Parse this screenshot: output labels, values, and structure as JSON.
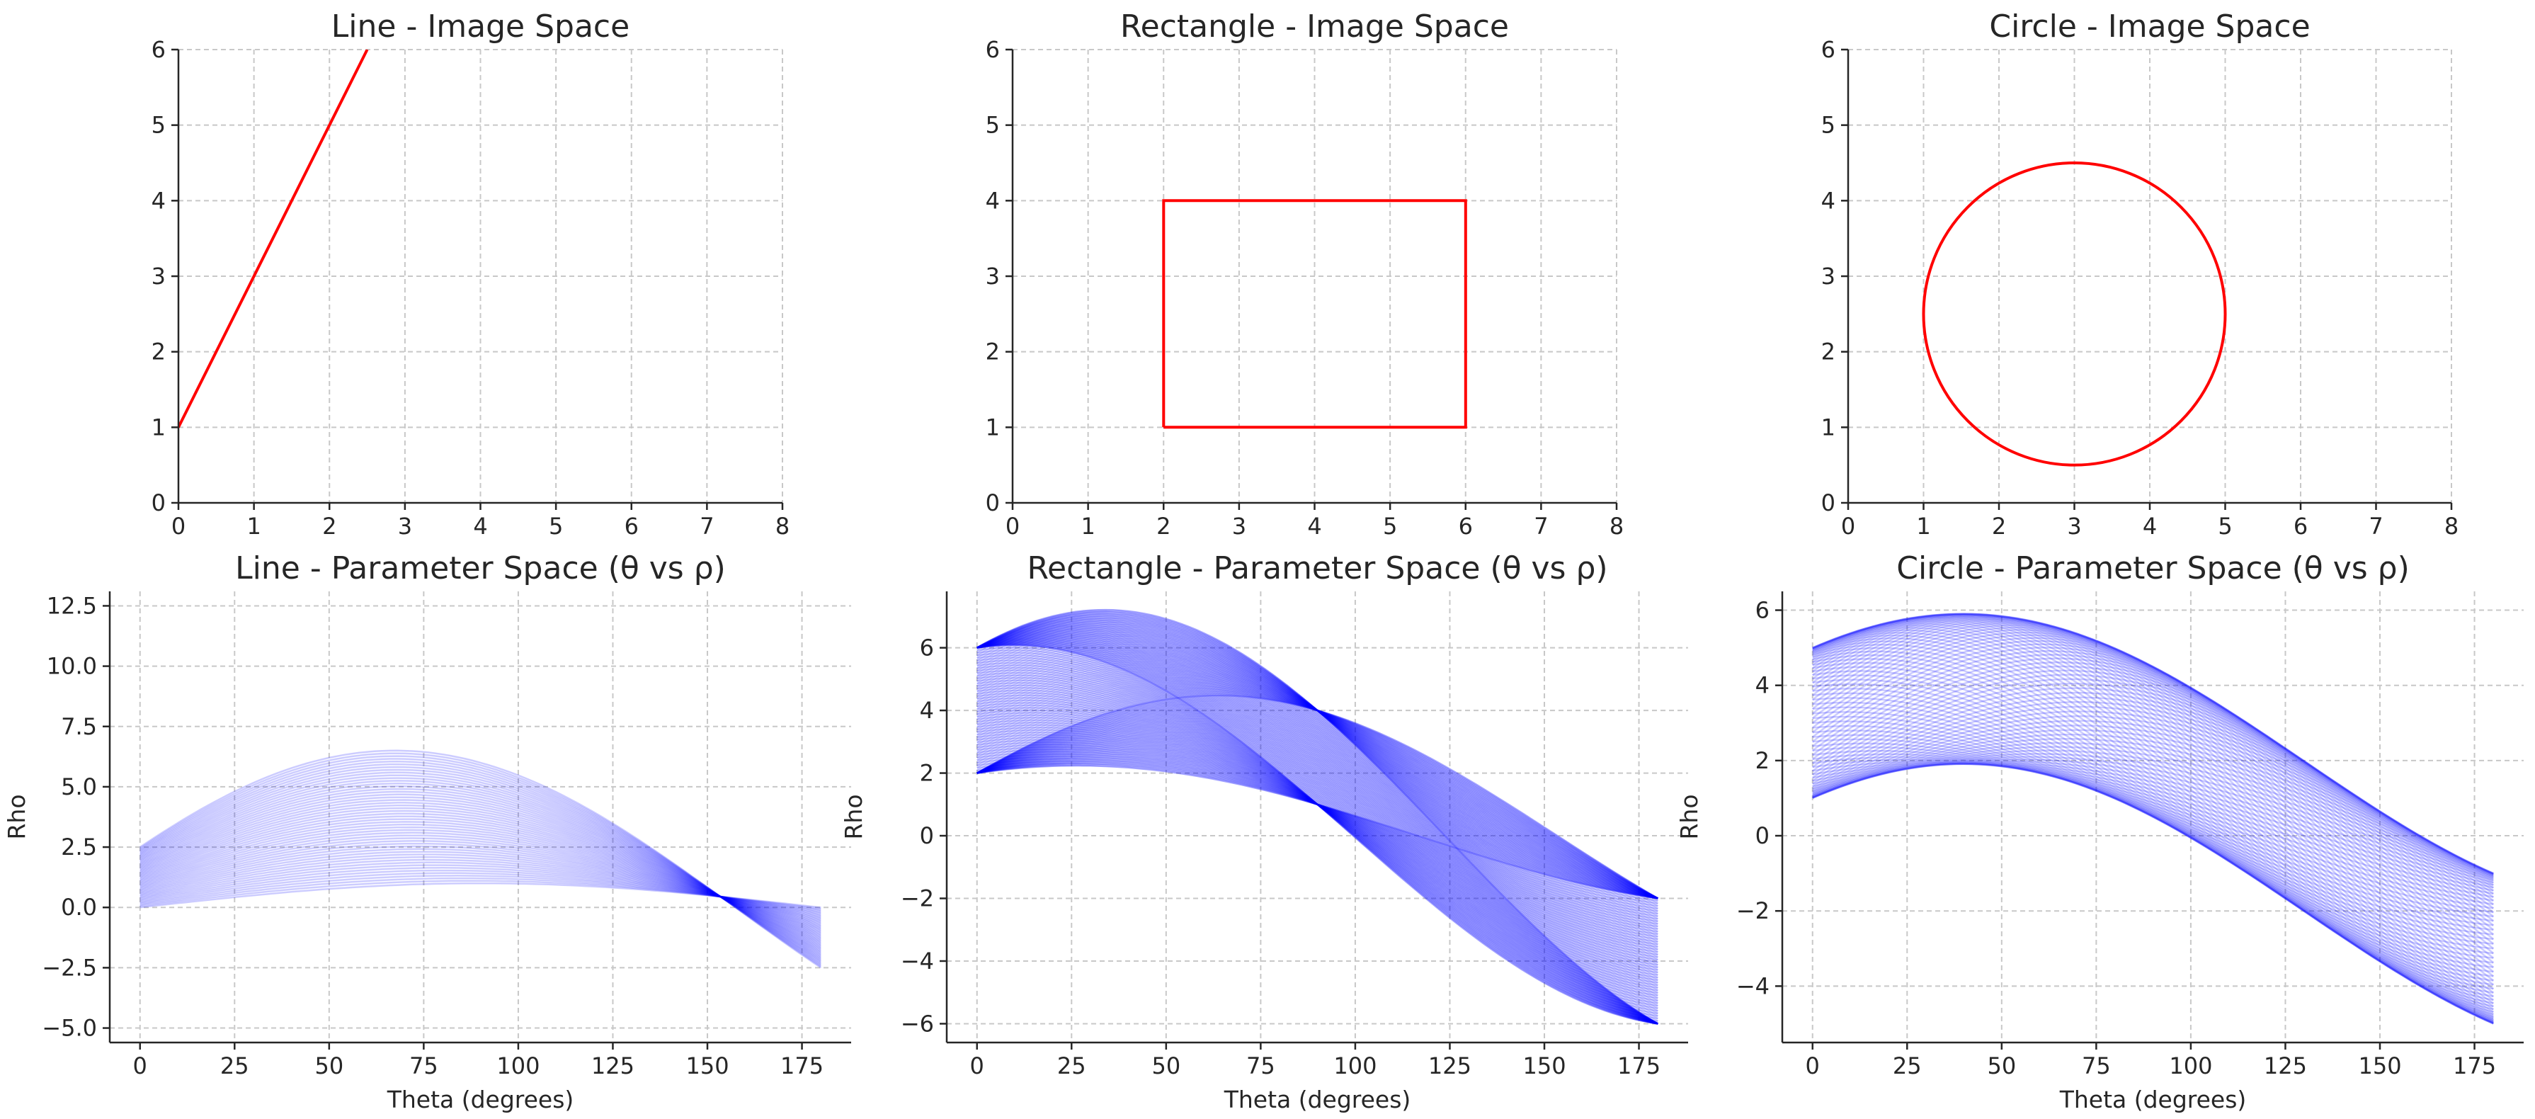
{
  "chart_data": [
    {
      "type": "line",
      "title": "Line - Image Space",
      "xlabel": "",
      "ylabel": "",
      "xlim": [
        0,
        8
      ],
      "ylim": [
        0,
        6
      ],
      "xticks": [
        "0",
        "1",
        "2",
        "3",
        "4",
        "5",
        "6",
        "7",
        "8"
      ],
      "yticks": [
        "0",
        "1",
        "2",
        "3",
        "4",
        "5",
        "6"
      ],
      "grid": true,
      "series": [
        {
          "color": "#ff0000",
          "x": [
            0,
            2.5
          ],
          "y": [
            1,
            6
          ]
        }
      ]
    },
    {
      "type": "line",
      "title": "Rectangle - Image Space",
      "xlabel": "",
      "ylabel": "",
      "xlim": [
        0,
        8
      ],
      "ylim": [
        0,
        6
      ],
      "xticks": [
        "0",
        "1",
        "2",
        "3",
        "4",
        "5",
        "6",
        "7",
        "8"
      ],
      "yticks": [
        "0",
        "1",
        "2",
        "3",
        "4",
        "5",
        "6"
      ],
      "grid": true,
      "series": [
        {
          "color": "#ff0000",
          "x": [
            2,
            6,
            6,
            2,
            2
          ],
          "y": [
            1,
            1,
            4,
            4,
            1
          ]
        }
      ]
    },
    {
      "type": "line",
      "title": "Circle - Image Space",
      "xlabel": "",
      "ylabel": "",
      "xlim": [
        0,
        8
      ],
      "ylim": [
        0,
        6
      ],
      "xticks": [
        "0",
        "1",
        "2",
        "3",
        "4",
        "5",
        "6",
        "7",
        "8"
      ],
      "yticks": [
        "0",
        "1",
        "2",
        "3",
        "4",
        "5",
        "6"
      ],
      "grid": true,
      "shape": {
        "kind": "circle",
        "center": [
          3,
          2.5
        ],
        "radius": 2
      },
      "series": [
        {
          "color": "#ff0000"
        }
      ]
    },
    {
      "type": "line",
      "title": "Line - Parameter Space (θ vs ρ)",
      "xlabel": "Theta (degrees)",
      "ylabel": "Rho",
      "xlim": [
        -8,
        188
      ],
      "ylim": [
        -5.6,
        13.1
      ],
      "xticks": [
        "0",
        "25",
        "50",
        "75",
        "100",
        "125",
        "150",
        "175"
      ],
      "yticks": [
        "−5.0",
        "−2.5",
        "0.0",
        "2.5",
        "5.0",
        "7.5",
        "10.0",
        "12.5"
      ],
      "grid": true,
      "hough": {
        "source": "line",
        "from": [
          0,
          1
        ],
        "to": [
          2.5,
          6
        ],
        "n_points": 50,
        "theta_range": [
          0,
          180
        ]
      },
      "series": [
        {
          "color": "#0000ff",
          "opacity": 0.2
        }
      ]
    },
    {
      "type": "line",
      "title": "Rectangle - Parameter Space (θ vs ρ)",
      "xlabel": "Theta (degrees)",
      "ylabel": "Rho",
      "xlim": [
        -8,
        188
      ],
      "ylim": [
        -6.6,
        7.8
      ],
      "xticks": [
        "0",
        "25",
        "50",
        "75",
        "100",
        "125",
        "150",
        "175"
      ],
      "yticks": [
        "−6",
        "−4",
        "−2",
        "0",
        "2",
        "4",
        "6"
      ],
      "grid": true,
      "hough": {
        "source": "rectangle",
        "corners": [
          [
            2,
            1
          ],
          [
            6,
            1
          ],
          [
            6,
            4
          ],
          [
            2,
            4
          ]
        ],
        "points_per_edge": 50,
        "theta_range": [
          0,
          180
        ]
      },
      "series": [
        {
          "color": "#0000ff",
          "opacity": 0.2
        }
      ]
    },
    {
      "type": "line",
      "title": "Circle - Parameter Space (θ vs ρ)",
      "xlabel": "Theta (degrees)",
      "ylabel": "Rho",
      "xlim": [
        -8,
        188
      ],
      "ylim": [
        -5.5,
        6.5
      ],
      "xticks": [
        "0",
        "25",
        "50",
        "75",
        "100",
        "125",
        "150",
        "175"
      ],
      "yticks": [
        "−4",
        "−2",
        "0",
        "2",
        "4",
        "6"
      ],
      "grid": true,
      "hough": {
        "source": "circle",
        "center": [
          3,
          2.5
        ],
        "radius": 2,
        "n_points": 100,
        "theta_range": [
          0,
          180
        ]
      },
      "series": [
        {
          "color": "#0000ff",
          "opacity": 0.2
        }
      ]
    }
  ]
}
